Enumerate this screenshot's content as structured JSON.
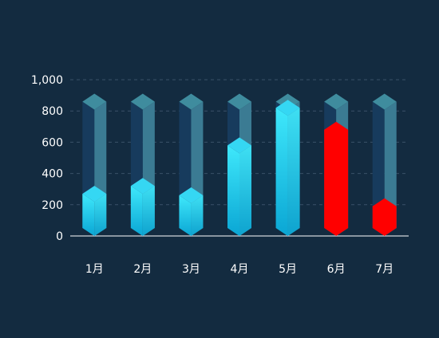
{
  "chart_data": {
    "type": "bar",
    "categories": [
      "1月",
      "2月",
      "3月",
      "4月",
      "5月",
      "6月",
      "7月"
    ],
    "values": [
      270,
      320,
      260,
      580,
      820,
      680,
      190
    ],
    "background_values": [
      860,
      860,
      860,
      860,
      860,
      860,
      860
    ],
    "ylim": [
      0,
      1000
    ],
    "yticks": [
      "0",
      "200",
      "400",
      "600",
      "800",
      "1,000"
    ],
    "grid": true,
    "highlight_color": "#ff0000",
    "highlighted_categories": [
      "6月",
      "7月"
    ],
    "colors": {
      "background": "#132b40",
      "bar_light": "#3fe8fb",
      "bar_dark": "#0aa6d4",
      "bar_top": "#35d7f3",
      "track_left": "#173b5d",
      "track_right": "#3b7b93",
      "track_top": "#3f8c9e",
      "tick_text": "#ffffff",
      "grid": "#3a5168"
    }
  }
}
